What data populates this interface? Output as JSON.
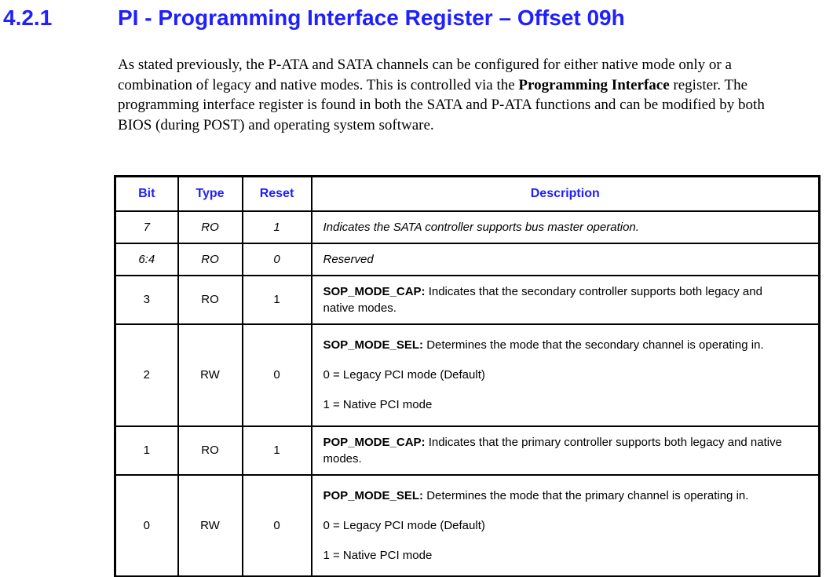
{
  "page": {
    "section_number": "4.2.1",
    "title": "PI - Programming Interface Register – Offset 09h"
  },
  "intro": {
    "part1": "As stated previously, the P-ATA and SATA channels can be configured for either native mode only or a combination of legacy and native modes. This is controlled via the ",
    "bold": "Programming Interface",
    "part2": " register. The programming interface register is found in both the SATA and P-ATA functions and can be modified by both BIOS (during POST) and operating system software."
  },
  "table": {
    "headers": {
      "bit": "Bit",
      "type": "Type",
      "reset": "Reset",
      "description": "Description"
    },
    "rows": [
      {
        "bit": "7",
        "type": "RO",
        "reset": "1",
        "desc_label": "",
        "desc_text": "Indicates the SATA controller supports bus master operation."
      },
      {
        "bit": "6:4",
        "type": "RO",
        "reset": "0",
        "desc_label": "",
        "desc_text": "Reserved"
      },
      {
        "bit": "3",
        "type": "RO",
        "reset": "1",
        "desc_label": "SOP_MODE_CAP:",
        "desc_text": " Indicates that the secondary controller supports both legacy and native modes."
      },
      {
        "bit": "2",
        "type": "RW",
        "reset": "0",
        "desc_label": "SOP_MODE_SEL:",
        "desc_text": " Determines the mode that the secondary channel is operating in.",
        "options": [
          "0 = Legacy PCI mode (Default)",
          "1 = Native PCI mode"
        ]
      },
      {
        "bit": "1",
        "type": "RO",
        "reset": "1",
        "desc_label": "POP_MODE_CAP:",
        "desc_text": " Indicates that the primary controller supports both legacy and native modes."
      },
      {
        "bit": "0",
        "type": "RW",
        "reset": "0",
        "desc_label": "POP_MODE_SEL:",
        "desc_text": " Determines the mode that the primary channel is operating in.",
        "options": [
          "0 = Legacy PCI mode (Default)",
          "1 = Native PCI mode"
        ]
      }
    ]
  },
  "colors": {
    "heading_blue": "#1f1fff",
    "table_header_blue": "#1f1fff",
    "border_black": "#000000",
    "background": "#ffffff"
  }
}
